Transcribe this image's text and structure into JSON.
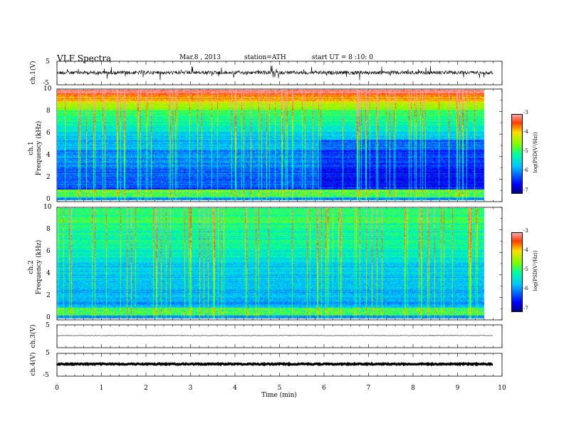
{
  "header": {
    "title": "VLF  Spectra",
    "date": "Mar.8  , 2013",
    "station": "station=ATH",
    "start": "start  UT  =   8  :10: 0"
  },
  "chart_data": [
    {
      "type": "line",
      "panel": "ch1-waveform",
      "ylabel": "ch.1(V)",
      "y_ticks": [
        "5",
        "-5"
      ],
      "ylim": [
        -5,
        5
      ],
      "note": "dense noisy waveform centered near 0 V"
    },
    {
      "type": "heatmap",
      "panel": "ch1-spectrogram",
      "ylabel": "ch.1\nFrequency (kHz)",
      "y_ticks": [
        "10",
        "8",
        "6",
        "4",
        "2",
        "0"
      ],
      "ylim": [
        0,
        10
      ],
      "colorbar": {
        "label": "log(PSD(V²/Hz))",
        "ticks": [
          "-3",
          "-4",
          "-5",
          "-6",
          "-7"
        ],
        "range": [
          -7,
          -3
        ]
      }
    },
    {
      "type": "heatmap",
      "panel": "ch2-spectrogram",
      "ylabel": "ch.2\nFrequency (kHz)",
      "y_ticks": [
        "10",
        "8",
        "6",
        "4",
        "2",
        "0"
      ],
      "ylim": [
        0,
        10
      ],
      "colorbar": {
        "label": "log(PSD(V²/Hz))",
        "ticks": [
          "-3",
          "-4",
          "-5",
          "-6",
          "-7"
        ],
        "range": [
          -7,
          -3
        ]
      }
    },
    {
      "type": "line",
      "panel": "ch3-waveform",
      "ylabel": "ch.3(V)",
      "y_ticks": [
        "5"
      ],
      "ylim": [
        -5,
        5
      ],
      "note": "flat trace near 0 V"
    },
    {
      "type": "line",
      "panel": "ch4-waveform",
      "ylabel": "ch.4(V)",
      "y_ticks": [
        "5",
        "-5"
      ],
      "ylim": [
        -5,
        5
      ],
      "note": "thick flat trace near 0 V"
    }
  ],
  "x_axis": {
    "xlabel": "Time  (min)",
    "ticks": [
      "0",
      "1",
      "2",
      "3",
      "4",
      "5",
      "6",
      "7",
      "8",
      "9",
      "10"
    ],
    "xlim": [
      0,
      10
    ],
    "data_end": 9.8
  }
}
